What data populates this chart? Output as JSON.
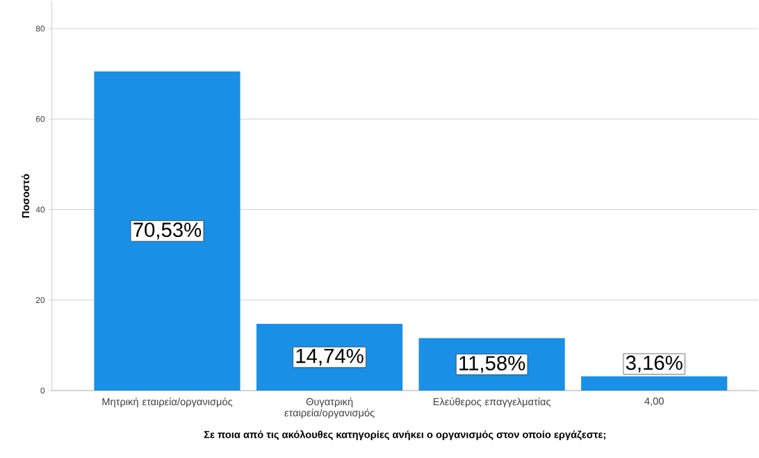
{
  "chart_data": {
    "type": "bar",
    "xlabel": "Σε ποια από τις ακόλουθες κατηγορίες ανήκει ο οργανισμός στον οποίο εργάζεστε;",
    "ylabel": "Ποσοστό",
    "categories": [
      "Μητρική εταιρεία/οργανισμός",
      "Θυγατρική εταιρεία/οργανισμός",
      "Ελεύθερος επαγγελματίας",
      "4,00"
    ],
    "values": [
      70.53,
      14.74,
      11.58,
      3.16
    ],
    "value_labels": [
      "70,53%",
      "14,74%",
      "11,58%",
      "3,16%"
    ],
    "color": "#1a8fe6",
    "ylim": [
      0,
      86
    ],
    "yticks": [
      0,
      20,
      40,
      60,
      80
    ],
    "grid": "y"
  }
}
